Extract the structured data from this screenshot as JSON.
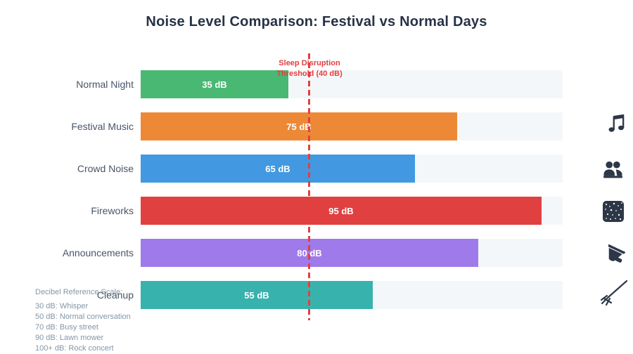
{
  "chart_data": {
    "type": "bar",
    "orientation": "horizontal",
    "title": "Noise Level Comparison: Festival vs Normal Days",
    "categories": [
      "Normal Night",
      "Festival Music",
      "Crowd Noise",
      "Fireworks",
      "Announcements",
      "Cleanup"
    ],
    "values": [
      35,
      75,
      65,
      95,
      80,
      55
    ],
    "value_labels": [
      "35 dB",
      "75 dB",
      "65 dB",
      "95 dB",
      "80 dB",
      "55 dB"
    ],
    "unit": "dB",
    "bar_colors": [
      "#49B873",
      "#ED8936",
      "#4299E1",
      "#E04040",
      "#9F7AEA",
      "#38B2AC"
    ],
    "track_color": "#F4F7FA",
    "icons": [
      "",
      "music-note-icon",
      "people-icon",
      "fireworks-icon",
      "megaphone-icon",
      "broom-icon"
    ],
    "xlim": [
      0,
      100
    ],
    "grid": false,
    "legend": "none",
    "threshold_line": {
      "x": 40,
      "style": "dashed",
      "color": "#E53E3E",
      "label_line1": "Sleep Disruption",
      "label_line2": "Threshold (40 dB)"
    }
  },
  "reference": {
    "heading": "Decibel Reference Scale:",
    "lines": [
      "30 dB: Whisper",
      "50 dB: Normal conversation",
      "70 dB: Busy street",
      "90 dB: Lawn mower",
      "100+ dB: Rock concert"
    ]
  }
}
